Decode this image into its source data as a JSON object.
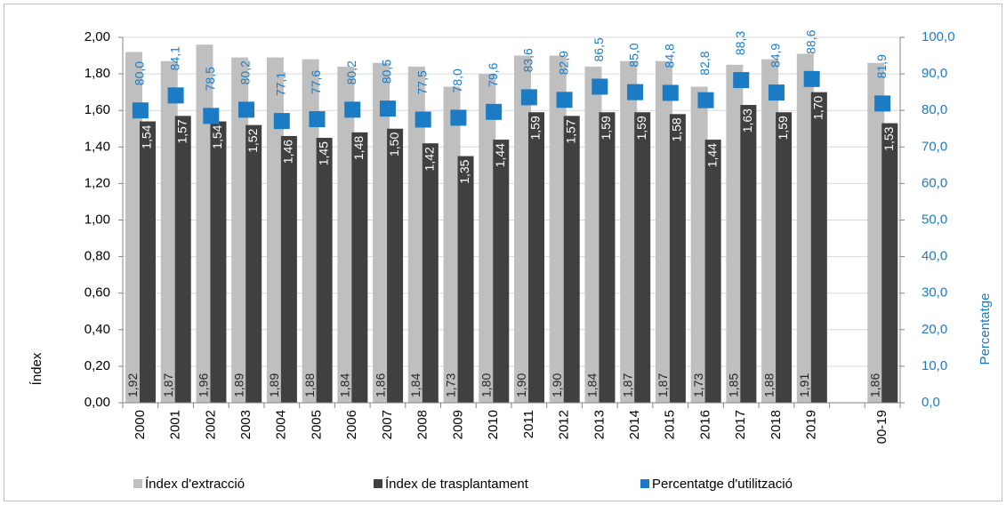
{
  "chart_data": {
    "type": "bar",
    "ylabel": "Índex",
    "y2label": "Percentatge",
    "categories": [
      "2000",
      "2001",
      "2002",
      "2003",
      "2004",
      "2005",
      "2006",
      "2007",
      "2008",
      "2009",
      "2010",
      "2011",
      "2012",
      "2013",
      "2014",
      "2015",
      "2016",
      "2017",
      "2018",
      "2019",
      null,
      "00-19"
    ],
    "series": [
      {
        "name": "Índex d'extracció",
        "type": "bar",
        "color": "#bfbfbf",
        "label_color": "#262626",
        "values": [
          1.92,
          1.87,
          1.96,
          1.89,
          1.89,
          1.88,
          1.84,
          1.86,
          1.84,
          1.73,
          1.8,
          1.9,
          1.9,
          1.84,
          1.87,
          1.87,
          1.73,
          1.85,
          1.88,
          1.91,
          null,
          1.86
        ],
        "value_labels": [
          "1,92",
          "1,87",
          "1,96",
          "1,89",
          "1,89",
          "1,88",
          "1,84",
          "1,86",
          "1,84",
          "1,73",
          "1,80",
          "1,90",
          "1,90",
          "1,84",
          "1,87",
          "1,87",
          "1,73",
          "1,85",
          "1,88",
          "1,91",
          null,
          "1,86"
        ]
      },
      {
        "name": "Índex de trasplantament",
        "type": "bar",
        "color": "#404040",
        "label_color": "#ffffff",
        "values": [
          1.54,
          1.57,
          1.54,
          1.52,
          1.46,
          1.45,
          1.48,
          1.5,
          1.42,
          1.35,
          1.44,
          1.59,
          1.57,
          1.59,
          1.59,
          1.58,
          1.44,
          1.63,
          1.59,
          1.7,
          null,
          1.53
        ],
        "value_labels": [
          "1,54",
          "1,57",
          "1,54",
          "1,52",
          "1,46",
          "1,45",
          "1,48",
          "1,50",
          "1,42",
          "1,35",
          "1,44",
          "1,59",
          "1,57",
          "1,59",
          "1,59",
          "1,58",
          "1,44",
          "1,63",
          "1,59",
          "1,70",
          null,
          "1,53"
        ]
      },
      {
        "name": "Percentatge d'utilització",
        "type": "scatter",
        "axis": "y2",
        "color": "#1b7bc4",
        "label_color": "#1b7bc4",
        "values": [
          80.0,
          84.1,
          78.5,
          80.2,
          77.1,
          77.6,
          80.2,
          80.5,
          77.5,
          78.0,
          79.6,
          83.6,
          82.9,
          86.5,
          85.0,
          84.8,
          82.8,
          88.3,
          84.9,
          88.6,
          null,
          81.9
        ],
        "value_labels": [
          "80,0",
          "84,1",
          "78,5",
          "80,2",
          "77,1",
          "77,6",
          "80,2",
          "80,5",
          "77,5",
          "78,0",
          "79,6",
          "83,6",
          "82,9",
          "86,5",
          "85,0",
          "84,8",
          "82,8",
          "88,3",
          "84,9",
          "88,6",
          null,
          "81,9"
        ]
      }
    ],
    "ylim": [
      0,
      2
    ],
    "yticks": [
      {
        "value": 0,
        "label": "0,00"
      },
      {
        "value": 0.2,
        "label": "0,20"
      },
      {
        "value": 0.4,
        "label": "0,40"
      },
      {
        "value": 0.6,
        "label": "0,60"
      },
      {
        "value": 0.8,
        "label": "0,80"
      },
      {
        "value": 1.0,
        "label": "1,00"
      },
      {
        "value": 1.2,
        "label": "1,20"
      },
      {
        "value": 1.4,
        "label": "1,40"
      },
      {
        "value": 1.6,
        "label": "1,60"
      },
      {
        "value": 1.8,
        "label": "1,80"
      },
      {
        "value": 2.0,
        "label": "2,00"
      }
    ],
    "y2lim": [
      0,
      100
    ],
    "y2ticks": [
      {
        "value": 0,
        "label": "0,0"
      },
      {
        "value": 10,
        "label": "10,0"
      },
      {
        "value": 20,
        "label": "20,0"
      },
      {
        "value": 30,
        "label": "30,0"
      },
      {
        "value": 40,
        "label": "40,0"
      },
      {
        "value": 50,
        "label": "50,0"
      },
      {
        "value": 60,
        "label": "60,0"
      },
      {
        "value": 70,
        "label": "70,0"
      },
      {
        "value": 80,
        "label": "80,0"
      },
      {
        "value": 90,
        "label": "90,0"
      },
      {
        "value": 100,
        "label": "100,0"
      }
    ],
    "y2color": "#1b7bc4",
    "grid": true,
    "legend": "bottom"
  }
}
